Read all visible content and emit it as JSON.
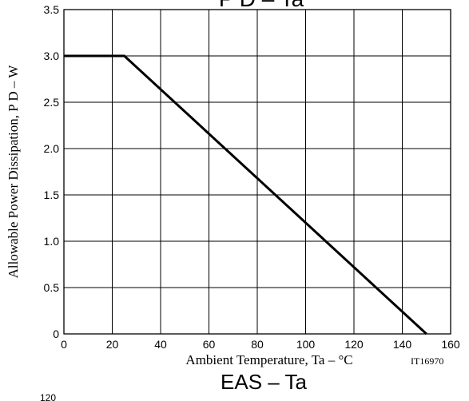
{
  "chart_data": {
    "type": "line",
    "title": "P D – Ta",
    "xlabel": "Ambient Temperature, Ta  –  °C",
    "ylabel": "Allowable Power Dissipation, P D  –  W",
    "xlim": [
      0,
      160
    ],
    "ylim": [
      0,
      3.5
    ],
    "xticks": [
      "0",
      "20",
      "40",
      "60",
      "80",
      "100",
      "120",
      "140",
      "160"
    ],
    "yticks": [
      "0",
      "0.5",
      "1.0",
      "1.5",
      "2.0",
      "2.5",
      "3.0",
      "3.5"
    ],
    "grid": true,
    "series": [
      {
        "x": [
          0,
          25,
          150
        ],
        "y": [
          3.0,
          3.0,
          0
        ]
      }
    ],
    "annotation": "IT16970"
  },
  "next_chart": {
    "title": "EAS  –  Ta",
    "first_tick": "120"
  }
}
